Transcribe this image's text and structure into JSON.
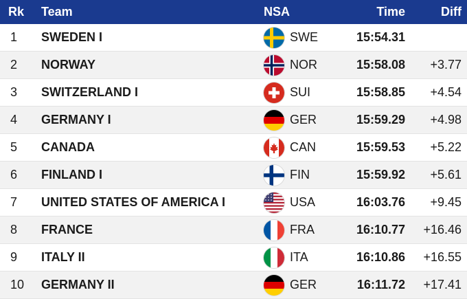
{
  "header": {
    "rk": "Rk",
    "team": "Team",
    "nsa": "NSA",
    "time": "Time",
    "diff": "Diff"
  },
  "rows": [
    {
      "rk": "1",
      "team": "SWEDEN I",
      "flag": "sweden-flag-icon",
      "nsa": "SWE",
      "time": "15:54.31",
      "diff": ""
    },
    {
      "rk": "2",
      "team": "NORWAY",
      "flag": "norway-flag-icon",
      "nsa": "NOR",
      "time": "15:58.08",
      "diff": "+3.77"
    },
    {
      "rk": "3",
      "team": "SWITZERLAND I",
      "flag": "switzerland-flag-icon",
      "nsa": "SUI",
      "time": "15:58.85",
      "diff": "+4.54"
    },
    {
      "rk": "4",
      "team": "GERMANY I",
      "flag": "germany-flag-icon",
      "nsa": "GER",
      "time": "15:59.29",
      "diff": "+4.98"
    },
    {
      "rk": "5",
      "team": "CANADA",
      "flag": "canada-flag-icon",
      "nsa": "CAN",
      "time": "15:59.53",
      "diff": "+5.22"
    },
    {
      "rk": "6",
      "team": "FINLAND I",
      "flag": "finland-flag-icon",
      "nsa": "FIN",
      "time": "15:59.92",
      "diff": "+5.61"
    },
    {
      "rk": "7",
      "team": "UNITED STATES OF AMERICA I",
      "flag": "usa-flag-icon",
      "nsa": "USA",
      "time": "16:03.76",
      "diff": "+9.45"
    },
    {
      "rk": "8",
      "team": "FRANCE",
      "flag": "france-flag-icon",
      "nsa": "FRA",
      "time": "16:10.77",
      "diff": "+16.46"
    },
    {
      "rk": "9",
      "team": "ITALY II",
      "flag": "italy-flag-icon",
      "nsa": "ITA",
      "time": "16:10.86",
      "diff": "+16.55"
    },
    {
      "rk": "10",
      "team": "GERMANY II",
      "flag": "germany-flag-icon",
      "nsa": "GER",
      "time": "16:11.72",
      "diff": "+17.41"
    }
  ],
  "colors": {
    "header_bg": "#1a3a8f",
    "header_text": "#ffffff",
    "alt_row_bg": "#f2f2f2"
  }
}
